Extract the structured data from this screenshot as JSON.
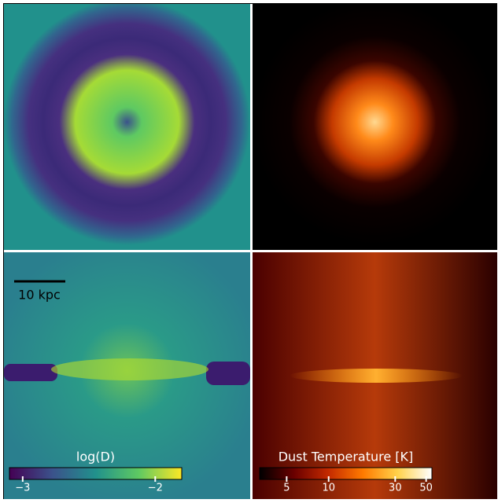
{
  "scale_bar": "10 kpc",
  "colorbars": [
    {
      "label": "log(D)",
      "lim": [
        -3.1,
        -1.8
      ],
      "log": false,
      "ticks": [
        {
          "value": -3,
          "label": "−3"
        },
        {
          "value": -2,
          "label": "−2"
        }
      ],
      "colors": [
        "#440154",
        "#3b528b",
        "#21918c",
        "#5ec962",
        "#fde725"
      ]
    },
    {
      "label": "Dust Temperature [K]",
      "lim": [
        3.2,
        55
      ],
      "log": true,
      "ticks": [
        5,
        10,
        30,
        50
      ],
      "colors": [
        "#000000",
        "#6a0000",
        "#c42a00",
        "#ff7a00",
        "#ffd24a",
        "#ffffff"
      ]
    }
  ]
}
